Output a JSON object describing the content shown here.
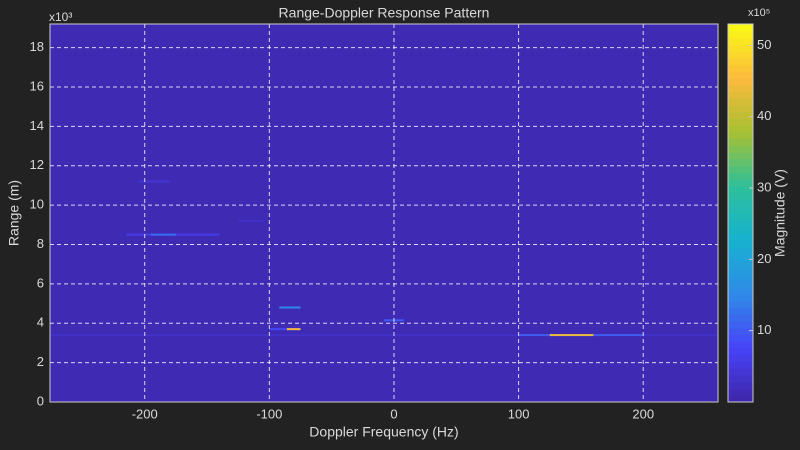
{
  "chart_data": {
    "type": "heatmap",
    "title": "Range-Doppler Response Pattern",
    "x_label": "Doppler Frequency (Hz)",
    "y_label": "Range (m)",
    "y_exponent_label": "x10³",
    "xlim": [
      -276,
      260
    ],
    "xticks": [
      -200,
      -100,
      0,
      100,
      200
    ],
    "ylim": [
      0,
      19.2
    ],
    "yticks": [
      0,
      2,
      4,
      6,
      8,
      10,
      12,
      14,
      16,
      18
    ],
    "grid": true,
    "colormap": [
      "#3e26a8",
      "#4743f8",
      "#2f8ae8",
      "#17b1cf",
      "#2ec09a",
      "#a6c031",
      "#fcba3d",
      "#f9fb15"
    ],
    "colorbar": {
      "label": "Magnitude (V)",
      "exponent_label": "x10⁵",
      "lim": [
        0,
        53
      ],
      "ticks": [
        10,
        20,
        30,
        40,
        50
      ]
    },
    "background": 1,
    "cells": [
      {
        "x0": -276,
        "x1": 260,
        "y": 3.4,
        "value": 3
      },
      {
        "x0": 100,
        "x1": 200,
        "y": 3.4,
        "value": 10
      },
      {
        "x0": 125,
        "x1": 160,
        "y": 3.4,
        "value": 44
      },
      {
        "x0": -100,
        "x1": -75,
        "y": 3.7,
        "value": 8
      },
      {
        "x0": -86,
        "x1": -75,
        "y": 3.7,
        "value": 45
      },
      {
        "x0": -92,
        "x1": -75,
        "y": 4.8,
        "value": 15
      },
      {
        "x0": -8,
        "x1": 8,
        "y": 4.15,
        "value": 10
      },
      {
        "x0": -215,
        "x1": -140,
        "y": 8.5,
        "value": 6
      },
      {
        "x0": -195,
        "x1": -175,
        "y": 8.5,
        "value": 12
      },
      {
        "x0": -125,
        "x1": -105,
        "y": 9.2,
        "value": 3
      },
      {
        "x0": -205,
        "x1": -180,
        "y": 11.2,
        "value": 4
      }
    ]
  }
}
